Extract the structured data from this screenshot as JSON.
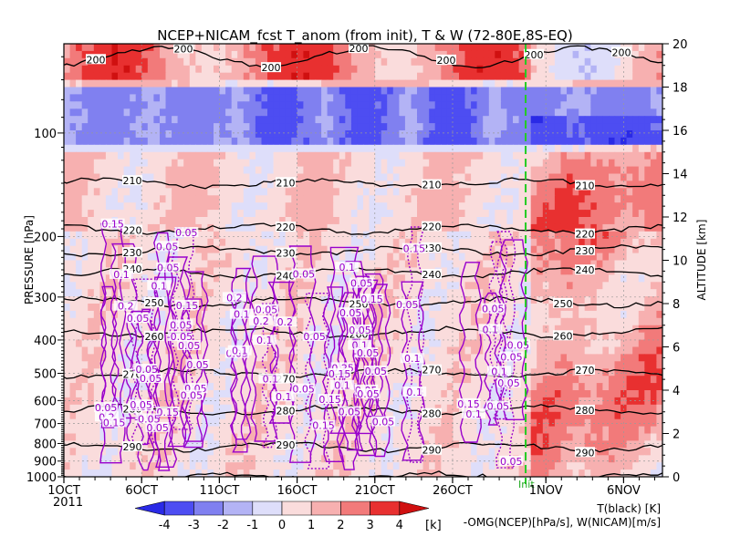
{
  "chart_data": {
    "type": "heatmap",
    "title": "NCEP+NICAM_fcst T_anom (from init), T & W  (72-80E,8S-EQ)",
    "xaxis": {
      "tick_labels": [
        "1OCT",
        "6OCT",
        "11OCT",
        "16OCT",
        "21OCT",
        "26OCT",
        "1NOV",
        "6NOV"
      ],
      "tick_days": [
        0,
        5,
        10,
        15,
        20,
        25,
        31,
        36
      ],
      "range_days": [
        0,
        38.5
      ],
      "year_label": "2011"
    },
    "yaxis_left": {
      "label": "PRESSURE [hPa]",
      "tick_labels": [
        "100",
        "200",
        "300",
        "400",
        "500",
        "600",
        "700",
        "800",
        "900",
        "1000"
      ],
      "tick_values": [
        100,
        200,
        300,
        400,
        500,
        600,
        700,
        800,
        900,
        1000
      ],
      "scale": "log",
      "range": [
        1000,
        55
      ]
    },
    "yaxis_right": {
      "label": "ALTITUDE [km]",
      "tick_labels": [
        "0",
        "2",
        "4",
        "6",
        "8",
        "10",
        "12",
        "14",
        "16",
        "18",
        "20"
      ],
      "tick_values": [
        0,
        2,
        4,
        6,
        8,
        10,
        12,
        14,
        16,
        18,
        20
      ]
    },
    "init_marker": {
      "label": "Init",
      "day": 29.7
    },
    "colorbar": {
      "levels": [
        -4,
        -3,
        -2,
        -1,
        0,
        1,
        2,
        3,
        4
      ],
      "level_labels": [
        "-4",
        "-3",
        "-2",
        "-1",
        "0",
        "1",
        "2",
        "3",
        "4"
      ],
      "colors": [
        "#2a2ae6",
        "#4d4df2",
        "#8080f0",
        "#b3b3f5",
        "#dedefa",
        "#fadcdc",
        "#f7b0b0",
        "#f27a7a",
        "#e83030",
        "#d01010"
      ],
      "unit": "[k]"
    },
    "legend": {
      "t_label": "T(black) [K]",
      "w_label": "-OMG(NCEP)[hPa/s], W(NICAM)[m/s]"
    },
    "series": [
      {
        "name": "T(black) [K]",
        "color": "#000000",
        "contour_levels": [
          200,
          210,
          220,
          230,
          240,
          250,
          260,
          270,
          280,
          290,
          300
        ],
        "approx_pressure_hPa": [
          60,
          140,
          190,
          220,
          255,
          310,
          380,
          500,
          640,
          820,
          1000
        ]
      },
      {
        "name": "-OMG(NCEP)[hPa/s], W(NICAM)[m/s]",
        "color": "#9900cc",
        "contour_levels": [
          -0.05,
          0.05,
          0.1,
          0.15,
          0.2,
          0.25
        ]
      }
    ],
    "t_contour_label_text": [
      "200",
      "200",
      "200",
      "200",
      "200",
      "200",
      "200",
      "210",
      "210",
      "210",
      "210",
      "220",
      "220",
      "220",
      "220",
      "230",
      "230",
      "230",
      "230",
      "240",
      "240",
      "240",
      "240",
      "250",
      "250",
      "250",
      "260",
      "260",
      "260",
      "270",
      "270",
      "270",
      "270",
      "280",
      "280",
      "280",
      "280",
      "290",
      "290",
      "290",
      "290",
      "300"
    ],
    "w_contour_label_text": [
      "0.05",
      "0.1",
      "0.15",
      "0.2",
      "0.05",
      "0.05",
      "0.1",
      "0.15",
      "0.05",
      "0.05",
      "0.05",
      "0.05",
      "0.05",
      "0.1",
      "0.1",
      "0.05",
      "0.15",
      "0.1",
      "0.05",
      "0.1",
      "0.05",
      "0.05",
      "0.15",
      "0.2",
      "0.25",
      "0.1",
      "0.05",
      "0.05",
      "0.15",
      "0.1",
      "0.05",
      "0.05",
      "0.15",
      "0.1",
      "0.05",
      "0.1",
      "0.2",
      "0.1",
      "0.05",
      "-0.05",
      "0.05",
      "0.1",
      "0.05",
      "0.05",
      "0.05",
      "0.05",
      "0.1",
      "0.05",
      "0.2",
      "-0.05",
      "0.15",
      "0.15",
      "0.05",
      "0.2",
      "0.1",
      "0.15",
      "0.05",
      "0.1",
      "0.05",
      "0.05",
      "-0.05",
      "0.05",
      "0.05",
      "0.15",
      "0.05",
      "-0.05",
      "0.05",
      "0.05",
      "0.05"
    ]
  }
}
